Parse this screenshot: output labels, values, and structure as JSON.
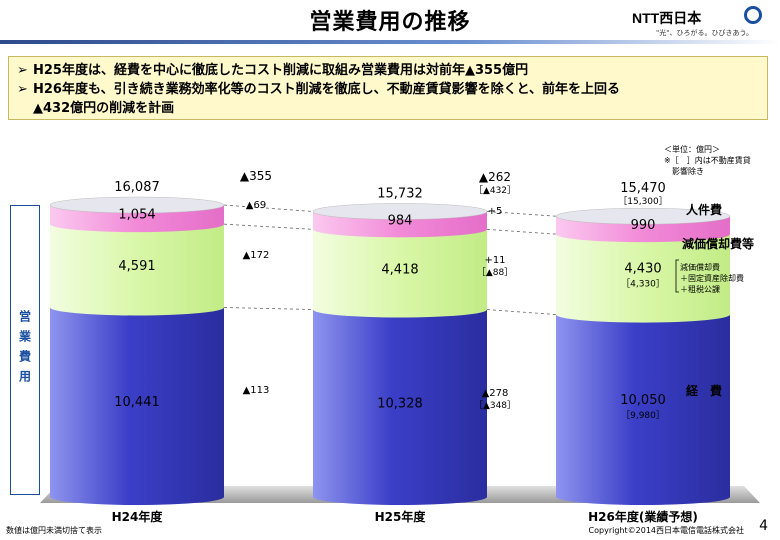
{
  "title": "営業費用の推移",
  "logo": {
    "name": "NTT西日本",
    "tagline": "\"光\"、ひろがる。ひびきあう。"
  },
  "summary": {
    "bullet": "➢",
    "lines": [
      "H25年度は、経費を中心に徹底したコスト削減に取組み営業費用は対前年▲355億円",
      "H26年度も、引き続き業務効率化等のコスト削減を徹底し、不動産賃貸影響を除くと、前年を上回る",
      "▲432億円の削減を計画"
    ]
  },
  "unit_note": [
    "＜単位：億円＞",
    "※［　］内は不動産賃貸",
    "　影響除き"
  ],
  "side_label": "営業費用",
  "mgmt_note": [
    "減価償却費",
    "＋固定資産除却費",
    "＋租税公課"
  ],
  "footer_left": "数値は億円未満切捨て表示",
  "footer_right": "Copyright©2014西日本電信電話株式会社",
  "page_number": "4",
  "colors": {
    "expense": "#3b3fc8",
    "depreciation": "#d9f7a8",
    "personnel": "#f28ad8",
    "top": "#e6e6ee"
  },
  "chart_data": {
    "type": "bar",
    "stacked": true,
    "categories": [
      "H24年度",
      "H25年度",
      "H26年度(業績予想)"
    ],
    "totals": [
      "16,087",
      "15,732",
      "15,470"
    ],
    "total_brackets": [
      "",
      "",
      "［15,300］"
    ],
    "series": [
      {
        "name": "経　費",
        "values": [
          10441,
          10328,
          10050
        ],
        "labels": [
          "10,441",
          "10,328",
          "10,050"
        ],
        "brackets": [
          "",
          "",
          "［9,980］"
        ]
      },
      {
        "name": "減価償却費等",
        "values": [
          4591,
          4418,
          4430
        ],
        "labels": [
          "4,591",
          "4,418",
          "4,430"
        ],
        "brackets": [
          "",
          "",
          "［4,330］"
        ]
      },
      {
        "name": "人件費",
        "values": [
          1054,
          984,
          990
        ],
        "labels": [
          "1,054",
          "984",
          "990"
        ],
        "brackets": [
          "",
          "",
          ""
        ]
      }
    ],
    "changes_h24_h25": {
      "total": "▲355",
      "personnel": "▲69",
      "depreciation": "▲172",
      "expense": "▲113"
    },
    "changes_h25_h26": {
      "total": "▲262",
      "total_bracket": "［▲432］",
      "personnel": "+5",
      "depreciation": "+11",
      "depreciation_bracket": "［▲88］",
      "expense": "▲278",
      "expense_bracket": "［▲348］"
    }
  }
}
